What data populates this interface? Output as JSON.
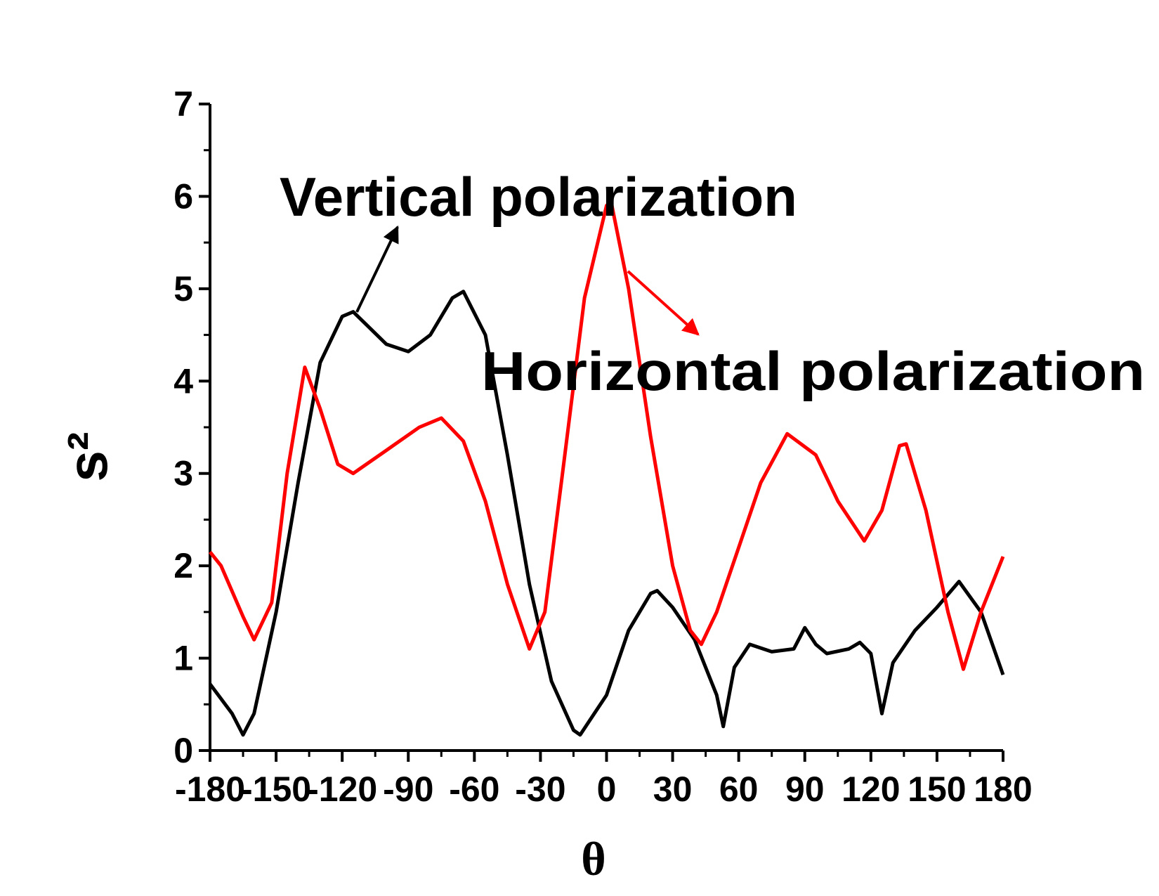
{
  "chart_data": {
    "type": "line",
    "xlabel": "θ",
    "ylabel": "s²",
    "annotations": [
      "Vertical polarization",
      "Horizontal polarization"
    ],
    "xlim": [
      -180,
      180
    ],
    "xticks": [
      -180,
      -150,
      -120,
      -90,
      -60,
      -30,
      0,
      30,
      60,
      90,
      120,
      150,
      180
    ],
    "ylim": [
      0,
      7
    ],
    "yticks": [
      0,
      1,
      2,
      3,
      4,
      5,
      6,
      7
    ],
    "grid": false,
    "series": [
      {
        "color": "#000000",
        "x": [
          -180,
          -170,
          -165,
          -160,
          -150,
          -140,
          -130,
          -120,
          -115,
          -100,
          -90,
          -80,
          -70,
          -65,
          -55,
          -45,
          -35,
          -25,
          -15,
          -12,
          0,
          10,
          20,
          23,
          30,
          40,
          50,
          53,
          58,
          65,
          75,
          85,
          90,
          95,
          100,
          110,
          115,
          120,
          125,
          130,
          140,
          150,
          160,
          170,
          180
        ],
        "values": [
          0.72,
          0.4,
          0.17,
          0.4,
          1.5,
          2.9,
          4.2,
          4.7,
          4.75,
          4.4,
          4.32,
          4.5,
          4.9,
          4.97,
          4.5,
          3.2,
          1.8,
          0.75,
          0.22,
          0.17,
          0.6,
          1.3,
          1.7,
          1.73,
          1.55,
          1.2,
          0.6,
          0.26,
          0.9,
          1.15,
          1.07,
          1.1,
          1.33,
          1.15,
          1.05,
          1.1,
          1.17,
          1.05,
          0.4,
          0.95,
          1.3,
          1.55,
          1.83,
          1.5,
          0.82
        ]
      },
      {
        "color": "#ff0000",
        "x": [
          -180,
          -175,
          -165,
          -160,
          -152,
          -145,
          -137,
          -130,
          -122,
          -115,
          -100,
          -85,
          -75,
          -65,
          -55,
          -45,
          -35,
          -28,
          -20,
          -10,
          0,
          2,
          10,
          20,
          30,
          38,
          43,
          50,
          60,
          70,
          82,
          95,
          105,
          117,
          125,
          133,
          136,
          145,
          155,
          162,
          170,
          180
        ],
        "values": [
          2.15,
          2.0,
          1.45,
          1.2,
          1.6,
          3.0,
          4.15,
          3.7,
          3.1,
          3.0,
          3.25,
          3.5,
          3.6,
          3.35,
          2.7,
          1.8,
          1.1,
          1.5,
          3.0,
          4.9,
          5.9,
          5.95,
          5.0,
          3.4,
          2.0,
          1.3,
          1.15,
          1.5,
          2.2,
          2.9,
          3.43,
          3.2,
          2.7,
          2.27,
          2.6,
          3.3,
          3.32,
          2.6,
          1.5,
          0.88,
          1.5,
          2.1
        ]
      }
    ]
  }
}
